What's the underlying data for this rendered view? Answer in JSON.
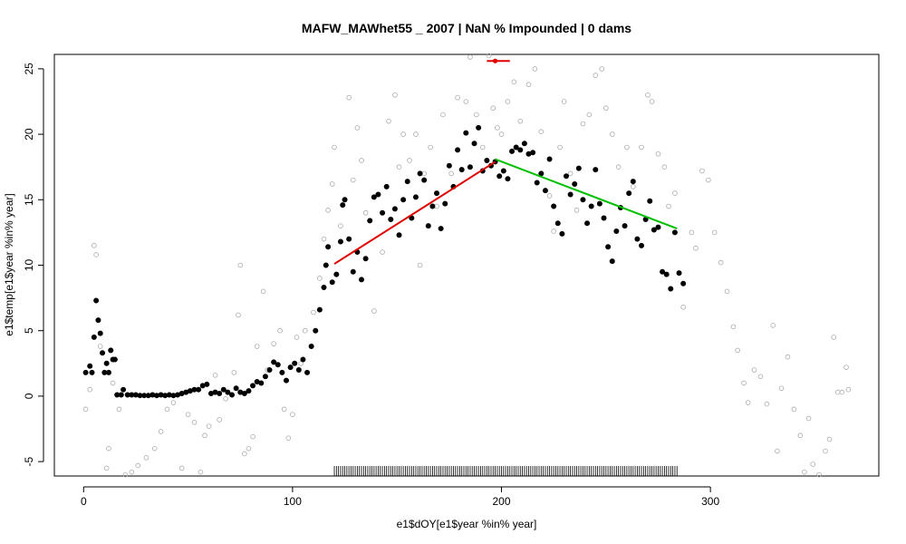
{
  "chart_data": {
    "type": "scatter",
    "title": "MAFW_MAWhet55 _ 2007   |   NaN  % Impounded |  0  dams",
    "x_label": "e1$dOY[e1$year %in% year]",
    "y_label": "e1$temp[e1$year %in% year]",
    "xlim": [
      -14,
      380.6
    ],
    "ylim": [
      -6.1,
      26.1
    ],
    "xticks": [
      0,
      100,
      200,
      300
    ],
    "yticks": [
      -5,
      0,
      5,
      10,
      15,
      20,
      25
    ],
    "series": [
      {
        "color": "#aaaaaa",
        "filled": false,
        "x": [
          1,
          3,
          5,
          6,
          8,
          11,
          12,
          14,
          17,
          20,
          23,
          26,
          30,
          34,
          37,
          40,
          43,
          47,
          50,
          53,
          56,
          58,
          60,
          63,
          65,
          68,
          72,
          74,
          75,
          77,
          79,
          81,
          83,
          86,
          88,
          91,
          94,
          96,
          98,
          100,
          102,
          104,
          106,
          110,
          113,
          115,
          117,
          119,
          120,
          123,
          127,
          129,
          131,
          133,
          135,
          139,
          143,
          146,
          149,
          151,
          153,
          156,
          159,
          161,
          163,
          166,
          169,
          172,
          176,
          179,
          183,
          185,
          188,
          191,
          194,
          196,
          198,
          200,
          203,
          206,
          209,
          213,
          216,
          219,
          223,
          225,
          228,
          230,
          233,
          236,
          239,
          242,
          245,
          248,
          250,
          253,
          256,
          260,
          263,
          267,
          270,
          272,
          275,
          278,
          280,
          283,
          287,
          291,
          293,
          296,
          299,
          302,
          305,
          308,
          311,
          313,
          316,
          318,
          321,
          324,
          327,
          330,
          332,
          334,
          337,
          340,
          343,
          345,
          347,
          349,
          352,
          355,
          357,
          359,
          361,
          363,
          365,
          366
        ],
        "y": [
          -1.0,
          0.5,
          11.5,
          10.8,
          3.8,
          -5.5,
          -4.0,
          1.0,
          -1.0,
          -6.0,
          -5.8,
          -5.3,
          -4.7,
          -4.0,
          -2.7,
          -1.0,
          -0.5,
          -5.5,
          -1.4,
          -2.0,
          -5.8,
          -3.0,
          -2.3,
          1.6,
          -1.8,
          -0.2,
          1.8,
          6.2,
          10.0,
          -4.4,
          -4.0,
          -3.1,
          3.8,
          8.0,
          2.0,
          4.0,
          5.0,
          -1.0,
          -3.2,
          -1.4,
          4.5,
          2.5,
          5.0,
          6.4,
          9.0,
          12.0,
          14.2,
          16.2,
          19.0,
          13.0,
          22.8,
          16.5,
          20.5,
          18.0,
          14.0,
          6.5,
          11.0,
          21.0,
          23.0,
          17.5,
          20.0,
          18.0,
          20.0,
          10.0,
          17.0,
          19.0,
          14.5,
          21.5,
          17.0,
          22.8,
          22.5,
          25.9,
          21.5,
          19.0,
          26.0,
          22.0,
          20.5,
          20.0,
          22.5,
          24.0,
          21.0,
          23.8,
          25.0,
          20.2,
          15.3,
          12.6,
          19.0,
          22.5,
          17.0,
          14.2,
          20.8,
          21.5,
          24.5,
          25.0,
          22.0,
          20.0,
          17.5,
          19.0,
          16.0,
          19.0,
          23.0,
          22.5,
          18.5,
          17.5,
          14.5,
          15.5,
          6.8,
          12.5,
          11.3,
          17.2,
          16.5,
          12.5,
          10.2,
          8.0,
          5.3,
          3.5,
          1.0,
          -0.5,
          2.0,
          1.5,
          -0.6,
          5.4,
          -4.2,
          0.6,
          3.0,
          -1.0,
          -3.0,
          -5.8,
          -1.7,
          -5.2,
          -6.0,
          -4.2,
          -3.3,
          4.5,
          0.3,
          0.3,
          2.2,
          0.5
        ]
      },
      {
        "color": "#000000",
        "filled": true,
        "x": [
          1,
          3,
          4,
          5,
          6,
          7,
          8,
          9,
          10,
          11,
          12,
          13,
          14,
          15,
          16,
          18,
          19,
          21,
          23,
          25,
          27,
          29,
          31,
          33,
          35,
          37,
          39,
          41,
          43,
          45,
          47,
          49,
          51,
          53,
          55,
          57,
          59,
          61,
          63,
          65,
          67,
          69,
          71,
          73,
          75,
          77,
          79,
          81,
          83,
          85,
          87,
          89,
          91,
          93,
          95,
          97,
          99,
          101,
          103,
          105,
          107,
          109,
          111,
          113,
          115,
          116,
          117,
          119,
          121,
          123,
          124,
          125,
          127,
          129,
          131,
          133,
          135,
          137,
          139,
          141,
          143,
          145,
          147,
          149,
          151,
          153,
          155,
          157,
          159,
          161,
          163,
          165,
          167,
          169,
          171,
          173,
          175,
          177,
          179,
          181,
          183,
          185,
          187,
          189,
          191,
          193,
          195,
          197,
          199,
          201,
          203,
          205,
          207,
          209,
          211,
          213,
          215,
          217,
          219,
          221,
          223,
          225,
          227,
          229,
          231,
          233,
          235,
          237,
          239,
          241,
          243,
          245,
          247,
          249,
          251,
          253,
          255,
          257,
          259,
          261,
          263,
          265,
          267,
          269,
          271,
          273,
          275,
          277,
          279,
          281,
          283,
          285,
          287
        ],
        "y": [
          1.8,
          2.3,
          1.8,
          4.5,
          7.3,
          5.8,
          4.8,
          3.3,
          1.8,
          2.5,
          1.8,
          3.5,
          2.8,
          2.8,
          0.1,
          0.1,
          0.5,
          0.1,
          0.1,
          0.1,
          0.05,
          0.05,
          0.05,
          0.1,
          0.05,
          0.1,
          0.05,
          0.1,
          0.05,
          0.1,
          0.2,
          0.3,
          0.4,
          0.5,
          0.5,
          0.8,
          0.9,
          0.2,
          0.3,
          0.2,
          0.5,
          0.3,
          0.1,
          0.6,
          0.3,
          0.2,
          0.4,
          0.8,
          1.1,
          1.0,
          1.5,
          2.0,
          2.6,
          2.4,
          1.8,
          1.2,
          2.2,
          2.5,
          2.0,
          2.8,
          1.8,
          3.8,
          5.0,
          6.6,
          8.3,
          10.0,
          11.4,
          8.7,
          9.3,
          11.8,
          14.6,
          15.0,
          12.0,
          9.5,
          11.0,
          8.9,
          10.5,
          13.4,
          15.2,
          15.4,
          14.0,
          16.0,
          13.5,
          14.3,
          12.3,
          15.0,
          16.4,
          13.6,
          15.2,
          17.0,
          16.5,
          13.0,
          14.5,
          15.5,
          12.8,
          14.7,
          17.6,
          16.0,
          18.8,
          17.3,
          20.1,
          17.5,
          19.3,
          20.5,
          17.2,
          18.0,
          17.6,
          17.9,
          16.8,
          17.2,
          16.6,
          18.7,
          19.0,
          18.8,
          19.3,
          18.5,
          18.6,
          16.3,
          17.0,
          15.7,
          18.1,
          14.5,
          13.2,
          12.4,
          16.8,
          15.4,
          16.2,
          17.4,
          15.0,
          13.2,
          14.5,
          17.3,
          14.7,
          13.6,
          11.4,
          10.3,
          12.6,
          14.4,
          13.0,
          15.5,
          16.4,
          12.0,
          11.5,
          13.5,
          14.9,
          12.7,
          12.9,
          9.5,
          9.3,
          8.2,
          12.5,
          9.4,
          8.6
        ]
      }
    ],
    "lines": [
      {
        "color": "#e00000",
        "x": [
          120,
          197
        ],
        "y": [
          10.1,
          17.9
        ]
      },
      {
        "color": "#00c000",
        "x": [
          197,
          284
        ],
        "y": [
          18.1,
          12.8
        ]
      },
      {
        "color": "#e00000",
        "x": [
          193,
          204
        ],
        "y": [
          25.6,
          25.6
        ]
      }
    ],
    "point": {
      "color": "#e00000",
      "x": 197,
      "y": 25.6
    },
    "rug": [
      120,
      121,
      122,
      123,
      124,
      125,
      126,
      127,
      128,
      129,
      130,
      131,
      132,
      133,
      134,
      135,
      136,
      137,
      138,
      139,
      140,
      141,
      142,
      143,
      144,
      145,
      146,
      147,
      148,
      149,
      150,
      151,
      152,
      153,
      154,
      155,
      156,
      157,
      158,
      159,
      160,
      161,
      162,
      163,
      164,
      165,
      166,
      167,
      168,
      169,
      170,
      171,
      172,
      173,
      174,
      175,
      176,
      177,
      178,
      179,
      180,
      181,
      182,
      183,
      184,
      185,
      186,
      187,
      188,
      189,
      190,
      191,
      192,
      193,
      194,
      195,
      196,
      197,
      198,
      199,
      200,
      201,
      202,
      203,
      204,
      205,
      206,
      207,
      208,
      209,
      210,
      211,
      212,
      213,
      214,
      215,
      216,
      217,
      218,
      219,
      220,
      221,
      222,
      223,
      224,
      225,
      226,
      227,
      228,
      229,
      230,
      231,
      232,
      233,
      234,
      235,
      236,
      237,
      238,
      239,
      240,
      241,
      242,
      243,
      244,
      245,
      246,
      247,
      248,
      249,
      250,
      251,
      252,
      253,
      254,
      255,
      256,
      257,
      258,
      259,
      260,
      261,
      262,
      263,
      264,
      265,
      266,
      267,
      268,
      269,
      270,
      271,
      272,
      273,
      274,
      275,
      276,
      277,
      278,
      279,
      280,
      281,
      282,
      283,
      284
    ]
  }
}
